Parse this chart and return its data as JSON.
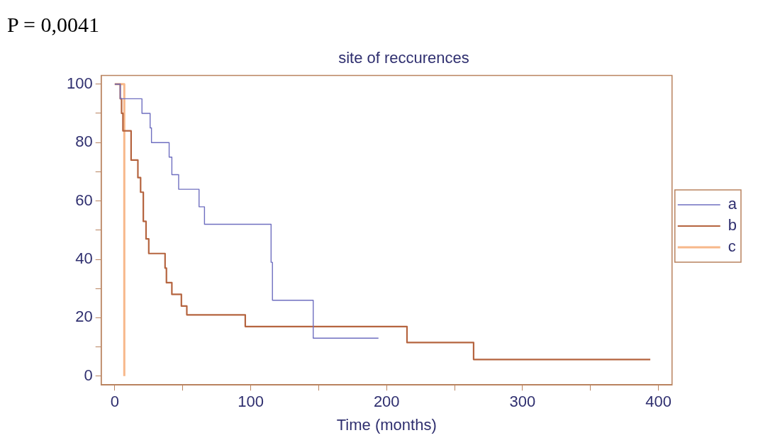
{
  "chart_data": {
    "type": "step",
    "title": "site of reccurences",
    "xlabel": "Time (months)",
    "annotations": [
      "P = 0,0041"
    ],
    "xlim": [
      -10,
      410
    ],
    "ylim": [
      -3,
      103
    ],
    "xticks": [
      0,
      {
        "value": 50,
        "label": null
      },
      100,
      {
        "value": 150,
        "label": null
      },
      200,
      {
        "value": 250,
        "label": null
      },
      300,
      {
        "value": 350,
        "label": null
      },
      400
    ],
    "yticks": [
      0,
      {
        "value": 10,
        "label": null
      },
      20,
      {
        "value": 30,
        "label": null
      },
      40,
      {
        "value": 50,
        "label": null
      },
      60,
      {
        "value": 70,
        "label": null
      },
      80,
      {
        "value": 90,
        "label": null
      },
      100
    ],
    "grid": false,
    "legend": "right",
    "marker": "none",
    "line_style": "solid",
    "series": [
      {
        "name": "a",
        "color": "#6f6fc0",
        "x": [
          0,
          4,
          20,
          26,
          27,
          40,
          42,
          47,
          62,
          66,
          115,
          116,
          146,
          194
        ],
        "values": [
          100,
          95,
          90,
          85,
          80,
          75,
          69,
          64,
          58,
          52,
          39,
          26,
          13,
          13
        ]
      },
      {
        "name": "b",
        "color": "#b5643f",
        "x": [
          0,
          4,
          5,
          6,
          12,
          17,
          19,
          21,
          23,
          25,
          37,
          38,
          42,
          49,
          53,
          96,
          215,
          264,
          394
        ],
        "values": [
          100,
          95,
          90,
          84,
          74,
          68,
          63,
          53,
          47,
          42,
          37,
          32,
          28,
          24,
          21,
          17,
          11.5,
          5.7,
          5.7
        ]
      },
      {
        "name": "c",
        "color": "#f7b88a",
        "x": [
          0,
          7
        ],
        "values": [
          100,
          0
        ]
      }
    ]
  }
}
